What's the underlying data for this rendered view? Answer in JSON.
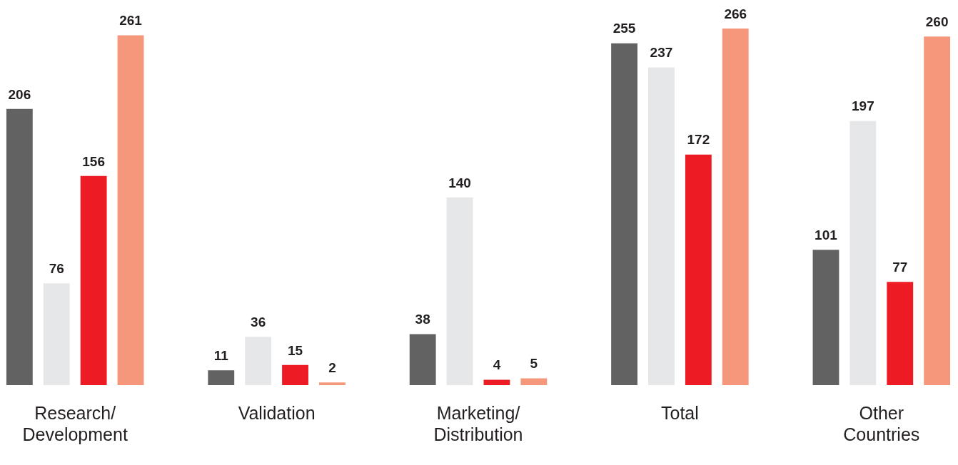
{
  "chart_data": {
    "type": "bar",
    "categories": [
      "Research/ Development",
      "Validation",
      "Marketing/ Distribution",
      "Total",
      "Other Countries"
    ],
    "series": [
      {
        "color": "#626262",
        "values": [
          206,
          11,
          38,
          255,
          101
        ]
      },
      {
        "color": "#e6e7e8",
        "values": [
          76,
          36,
          140,
          237,
          197
        ]
      },
      {
        "color": "#ed1c24",
        "values": [
          156,
          15,
          4,
          172,
          77
        ]
      },
      {
        "color": "#f4977a",
        "values": [
          261,
          2,
          5,
          266,
          260
        ]
      }
    ],
    "ylim": [
      0,
      266
    ],
    "tick_labels": "x",
    "data_labels": true
  }
}
